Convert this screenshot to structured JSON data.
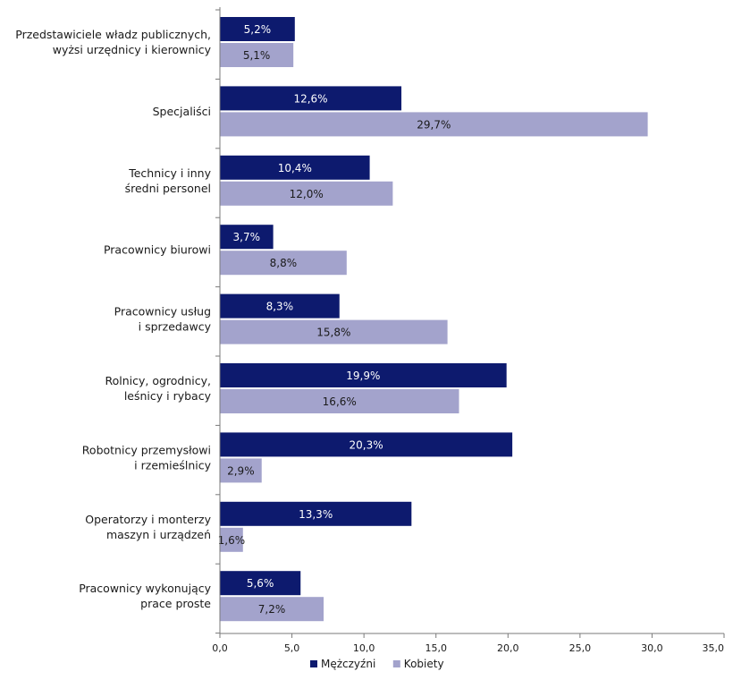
{
  "chart_data": {
    "type": "bar",
    "orientation": "horizontal",
    "categories": [
      [
        "Przedstawiciele władz publicznych,",
        "wyżsi urzędnicy i kierownicy"
      ],
      [
        "Specjaliści"
      ],
      [
        "Technicy i inny",
        "średni personel"
      ],
      [
        "Pracownicy biurowi"
      ],
      [
        "Pracownicy usług",
        "i sprzedawcy"
      ],
      [
        "Rolnicy, ogrodnicy,",
        "leśnicy i rybacy"
      ],
      [
        "Robotnicy przemysłowi",
        "i rzemieślnicy"
      ],
      [
        "Operatorzy i monterzy",
        "maszyn i urządzeń"
      ],
      [
        "Pracownicy wykonujący",
        "prace proste"
      ]
    ],
    "series": [
      {
        "name": "Mężczyźni",
        "color": "#0d1a6e",
        "label_color": "#ffffff",
        "values": [
          5.2,
          12.6,
          10.4,
          3.7,
          8.3,
          19.9,
          20.3,
          13.3,
          5.6
        ],
        "labels": [
          "5,2%",
          "12,6%",
          "10,4%",
          "3,7%",
          "8,3%",
          "19,9%",
          "20,3%",
          "13,3%",
          "5,6%"
        ]
      },
      {
        "name": "Kobiety",
        "color": "#a3a3cc",
        "label_color": "#1a1a1a",
        "values": [
          5.1,
          29.7,
          12.0,
          8.8,
          15.8,
          16.6,
          2.9,
          1.6,
          7.2
        ],
        "labels": [
          "5,1%",
          "29,7%",
          "12,0%",
          "8,8%",
          "15,8%",
          "16,6%",
          "2,9%",
          "1,6%",
          "7,2%"
        ]
      }
    ],
    "xlim": [
      0,
      35
    ],
    "xticks": [
      0,
      5,
      10,
      15,
      20,
      25,
      30,
      35
    ],
    "xtick_labels": [
      "0,0",
      "5,0",
      "10,0",
      "15,0",
      "20,0",
      "25,0",
      "30,0",
      "35,0"
    ],
    "grid": false,
    "legend_position": "bottom-center"
  }
}
